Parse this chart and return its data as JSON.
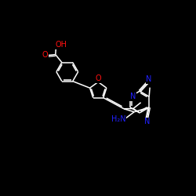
{
  "bg": "#000000",
  "bc": "#ffffff",
  "nc": "#2222ff",
  "oc": "#ff1111",
  "lw": 1.1,
  "fs": 7.0,
  "xlim": [
    0,
    10
  ],
  "ylim": [
    0,
    10
  ]
}
